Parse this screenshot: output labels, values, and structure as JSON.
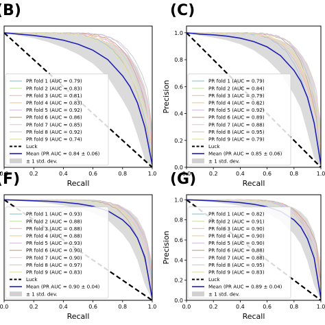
{
  "chart_data": [
    {
      "type": "line",
      "panel_label": "(B)",
      "xlabel": "Recall",
      "ylabel": "",
      "xlim": [
        0,
        1
      ],
      "ylim": [
        0,
        1.05
      ],
      "xticks": [
        "0.0",
        "0.2",
        "0.4",
        "0.6",
        "0.8",
        "1.0"
      ],
      "yticks": [],
      "grid": false,
      "legend_position": "lower-left",
      "folds": [
        {
          "name": "PR fold 1 (AUC = 0.79)",
          "color": "#9ec7da",
          "auc": 0.79
        },
        {
          "name": "PR fold 2 (AUC = 0.83)",
          "color": "#c7e3a8",
          "auc": 0.83
        },
        {
          "name": "PR fold 3 (AUC = 0.81)",
          "color": "#f4b6b6",
          "auc": 0.81
        },
        {
          "name": "PR fold 4 (AUC = 0.83)",
          "color": "#f8cd97",
          "auc": 0.83
        },
        {
          "name": "PR fold 5 (AUC = 0.92)",
          "color": "#d4c2e4",
          "auc": 0.92
        },
        {
          "name": "PR fold 6 (AUC = 0.86)",
          "color": "#c7a898",
          "auc": 0.86
        },
        {
          "name": "PR fold 7 (AUC = 0.85)",
          "color": "#f1c4e2",
          "auc": 0.85
        },
        {
          "name": "PR fold 8 (AUC = 0.92)",
          "color": "#c9c9c9",
          "auc": 0.92
        },
        {
          "name": "PR fold 9 (AUC = 0.74)",
          "color": "#e3e3a6",
          "auc": 0.74
        }
      ],
      "luck_label": "Luck",
      "luck_line": {
        "x": [
          0,
          1
        ],
        "y": [
          1,
          0
        ]
      },
      "mean_label": "Mean (PR AUC = 0.84 ± 0.06)",
      "std_label": "± 1 std. dev.",
      "mean_curve": {
        "x": [
          0,
          0.1,
          0.2,
          0.3,
          0.4,
          0.5,
          0.6,
          0.7,
          0.8,
          0.85,
          0.9,
          0.95,
          1.0
        ],
        "y": [
          1.0,
          0.99,
          0.98,
          0.965,
          0.945,
          0.915,
          0.87,
          0.8,
          0.68,
          0.6,
          0.48,
          0.3,
          0.02
        ]
      },
      "std_band": {
        "x": [
          0,
          0.1,
          0.2,
          0.3,
          0.4,
          0.5,
          0.6,
          0.7,
          0.8,
          0.85,
          0.9,
          0.95,
          1.0
        ],
        "upper": [
          1.0,
          1.0,
          1.0,
          1.0,
          0.995,
          0.985,
          0.965,
          0.93,
          0.87,
          0.82,
          0.74,
          0.6,
          0.32
        ],
        "lower": [
          1.0,
          0.98,
          0.96,
          0.93,
          0.89,
          0.84,
          0.77,
          0.67,
          0.5,
          0.4,
          0.24,
          0.06,
          0.0
        ]
      }
    },
    {
      "type": "line",
      "panel_label": "(C)",
      "xlabel": "Recall",
      "ylabel": "Precision",
      "xlim": [
        0,
        1
      ],
      "ylim": [
        0,
        1.05
      ],
      "xticks": [
        "0.0",
        "0.2",
        "0.4",
        "0.6",
        "0.8",
        "1.0"
      ],
      "yticks": [
        "0.0",
        "0.2",
        "0.4",
        "0.6",
        "0.8",
        "1.0"
      ],
      "grid": false,
      "legend_position": "lower-left",
      "folds": [
        {
          "name": "PR fold 1 (AUC = 0.79)",
          "color": "#9ec7da",
          "auc": 0.79
        },
        {
          "name": "PR fold 2 (AUC = 0.84)",
          "color": "#c7e3a8",
          "auc": 0.84
        },
        {
          "name": "PR fold 3 (AUC = 0.79)",
          "color": "#f4b6b6",
          "auc": 0.79
        },
        {
          "name": "PR fold 4 (AUC = 0.82)",
          "color": "#f8cd97",
          "auc": 0.82
        },
        {
          "name": "PR fold 5 (AUC = 0.92)",
          "color": "#d4c2e4",
          "auc": 0.92
        },
        {
          "name": "PR fold 6 (AUC = 0.89)",
          "color": "#c7a898",
          "auc": 0.89
        },
        {
          "name": "PR fold 7 (AUC = 0.88)",
          "color": "#f1c4e2",
          "auc": 0.88
        },
        {
          "name": "PR fold 8 (AUC = 0.95)",
          "color": "#c9c9c9",
          "auc": 0.95
        },
        {
          "name": "PR fold 9 (AUC = 0.79)",
          "color": "#e3e3a6",
          "auc": 0.79
        }
      ],
      "luck_label": "Luck",
      "luck_line": {
        "x": [
          0,
          1
        ],
        "y": [
          1,
          0
        ]
      },
      "mean_label": "Mean (PR AUC = 0.85 ± 0.06)",
      "std_label": "± 1 std. dev.",
      "mean_curve": {
        "x": [
          0,
          0.1,
          0.2,
          0.3,
          0.4,
          0.5,
          0.6,
          0.7,
          0.8,
          0.85,
          0.9,
          0.95,
          1.0
        ],
        "y": [
          1.0,
          0.99,
          0.985,
          0.975,
          0.96,
          0.935,
          0.895,
          0.83,
          0.72,
          0.64,
          0.52,
          0.33,
          0.02
        ]
      },
      "std_band": {
        "x": [
          0,
          0.1,
          0.2,
          0.3,
          0.4,
          0.5,
          0.6,
          0.7,
          0.8,
          0.85,
          0.9,
          0.95,
          1.0
        ],
        "upper": [
          1.0,
          1.0,
          1.0,
          1.0,
          1.0,
          0.99,
          0.975,
          0.945,
          0.89,
          0.84,
          0.77,
          0.63,
          0.34
        ],
        "lower": [
          1.0,
          0.98,
          0.965,
          0.945,
          0.915,
          0.87,
          0.8,
          0.7,
          0.54,
          0.44,
          0.26,
          0.07,
          0.0
        ]
      }
    },
    {
      "type": "line",
      "panel_label": "(F)",
      "xlabel": "Recall",
      "ylabel": "",
      "xlim": [
        0,
        1
      ],
      "ylim": [
        0,
        1.05
      ],
      "xticks": [
        "0.0",
        "0.2",
        "0.4",
        "0.6",
        "0.8",
        "1.0"
      ],
      "yticks": [],
      "grid": false,
      "legend_position": "lower-left",
      "folds": [
        {
          "name": "PR fold 1 (AUC = 0.93)",
          "color": "#9ec7da",
          "auc": 0.93
        },
        {
          "name": "PR fold 2 (AUC = 0.88)",
          "color": "#c7e3a8",
          "auc": 0.88
        },
        {
          "name": "PR fold 3 (AUC = 0.88)",
          "color": "#f4b6b6",
          "auc": 0.88
        },
        {
          "name": "PR fold 4 (AUC = 0.88)",
          "color": "#f8cd97",
          "auc": 0.88
        },
        {
          "name": "PR fold 5 (AUC = 0.93)",
          "color": "#d4c2e4",
          "auc": 0.93
        },
        {
          "name": "PR fold 6 (AUC = 0.90)",
          "color": "#c7a898",
          "auc": 0.9
        },
        {
          "name": "PR fold 7 (AUC = 0.90)",
          "color": "#f1c4e2",
          "auc": 0.9
        },
        {
          "name": "PR fold 8 (AUC = 0.97)",
          "color": "#c9c9c9",
          "auc": 0.97
        },
        {
          "name": "PR fold 9 (AUC = 0.83)",
          "color": "#e3e3a6",
          "auc": 0.83
        }
      ],
      "luck_label": "Luck",
      "luck_line": {
        "x": [
          0,
          1
        ],
        "y": [
          1,
          0
        ]
      },
      "mean_label": "Mean (PR AUC = 0.90 ± 0.04)",
      "std_label": "± 1 std. dev.",
      "mean_curve": {
        "x": [
          0,
          0.1,
          0.2,
          0.3,
          0.4,
          0.5,
          0.6,
          0.7,
          0.8,
          0.85,
          0.9,
          0.95,
          1.0
        ],
        "y": [
          1.0,
          0.995,
          0.99,
          0.985,
          0.975,
          0.96,
          0.935,
          0.89,
          0.8,
          0.73,
          0.62,
          0.43,
          0.02
        ]
      },
      "std_band": {
        "x": [
          0,
          0.1,
          0.2,
          0.3,
          0.4,
          0.5,
          0.6,
          0.7,
          0.8,
          0.85,
          0.9,
          0.95,
          1.0
        ],
        "upper": [
          1.0,
          1.0,
          1.0,
          1.0,
          1.0,
          1.0,
          0.99,
          0.97,
          0.93,
          0.89,
          0.82,
          0.68,
          0.38
        ],
        "lower": [
          1.0,
          0.99,
          0.98,
          0.965,
          0.945,
          0.915,
          0.87,
          0.8,
          0.66,
          0.56,
          0.4,
          0.16,
          0.0
        ]
      }
    },
    {
      "type": "line",
      "panel_label": "(G)",
      "xlabel": "Recall",
      "ylabel": "Precision",
      "xlim": [
        0,
        1
      ],
      "ylim": [
        0,
        1.05
      ],
      "xticks": [
        "0.0",
        "0.2",
        "0.4",
        "0.6",
        "0.8",
        "1.0"
      ],
      "yticks": [
        "0.0",
        "0.2",
        "0.4",
        "0.6",
        "0.8",
        "1.0"
      ],
      "grid": false,
      "legend_position": "lower-left",
      "folds": [
        {
          "name": "PR fold 1 (AUC = 0.82)",
          "color": "#9ec7da",
          "auc": 0.82
        },
        {
          "name": "PR fold 2 (AUC = 0.91)",
          "color": "#c7e3a8",
          "auc": 0.91
        },
        {
          "name": "PR fold 3 (AUC = 0.90)",
          "color": "#f4b6b6",
          "auc": 0.9
        },
        {
          "name": "PR fold 4 (AUC = 0.90)",
          "color": "#f8cd97",
          "auc": 0.9
        },
        {
          "name": "PR fold 5 (AUC = 0.90)",
          "color": "#d4c2e4",
          "auc": 0.9
        },
        {
          "name": "PR fold 6 (AUC = 0.88)",
          "color": "#c7a898",
          "auc": 0.88
        },
        {
          "name": "PR fold 7 (AUC = 0.88)",
          "color": "#f1c4e2",
          "auc": 0.88
        },
        {
          "name": "PR fold 8 (AUC = 0.95)",
          "color": "#c9c9c9",
          "auc": 0.95
        },
        {
          "name": "PR fold 9 (AUC = 0.83)",
          "color": "#e3e3a6",
          "auc": 0.83
        }
      ],
      "luck_label": "Luck",
      "luck_line": {
        "x": [
          0,
          1
        ],
        "y": [
          1,
          0
        ]
      },
      "mean_label": "Mean (PR AUC = 0.89 ± 0.04)",
      "std_label": "± 1 std. dev.",
      "mean_curve": {
        "x": [
          0,
          0.1,
          0.2,
          0.3,
          0.4,
          0.5,
          0.6,
          0.7,
          0.8,
          0.85,
          0.9,
          0.95,
          1.0
        ],
        "y": [
          1.0,
          0.995,
          0.99,
          0.982,
          0.972,
          0.955,
          0.93,
          0.885,
          0.8,
          0.73,
          0.61,
          0.42,
          0.02
        ]
      },
      "std_band": {
        "x": [
          0,
          0.1,
          0.2,
          0.3,
          0.4,
          0.5,
          0.6,
          0.7,
          0.8,
          0.85,
          0.9,
          0.95,
          1.0
        ],
        "upper": [
          1.0,
          1.0,
          1.0,
          1.0,
          1.0,
          0.995,
          0.985,
          0.965,
          0.92,
          0.88,
          0.81,
          0.67,
          0.37
        ],
        "lower": [
          1.0,
          0.99,
          0.975,
          0.96,
          0.94,
          0.91,
          0.865,
          0.79,
          0.66,
          0.56,
          0.39,
          0.15,
          0.0
        ]
      }
    }
  ],
  "colors": {
    "luck": "#000000",
    "mean": "#1f1fb4",
    "std_fill": "#bdbdbd"
  }
}
